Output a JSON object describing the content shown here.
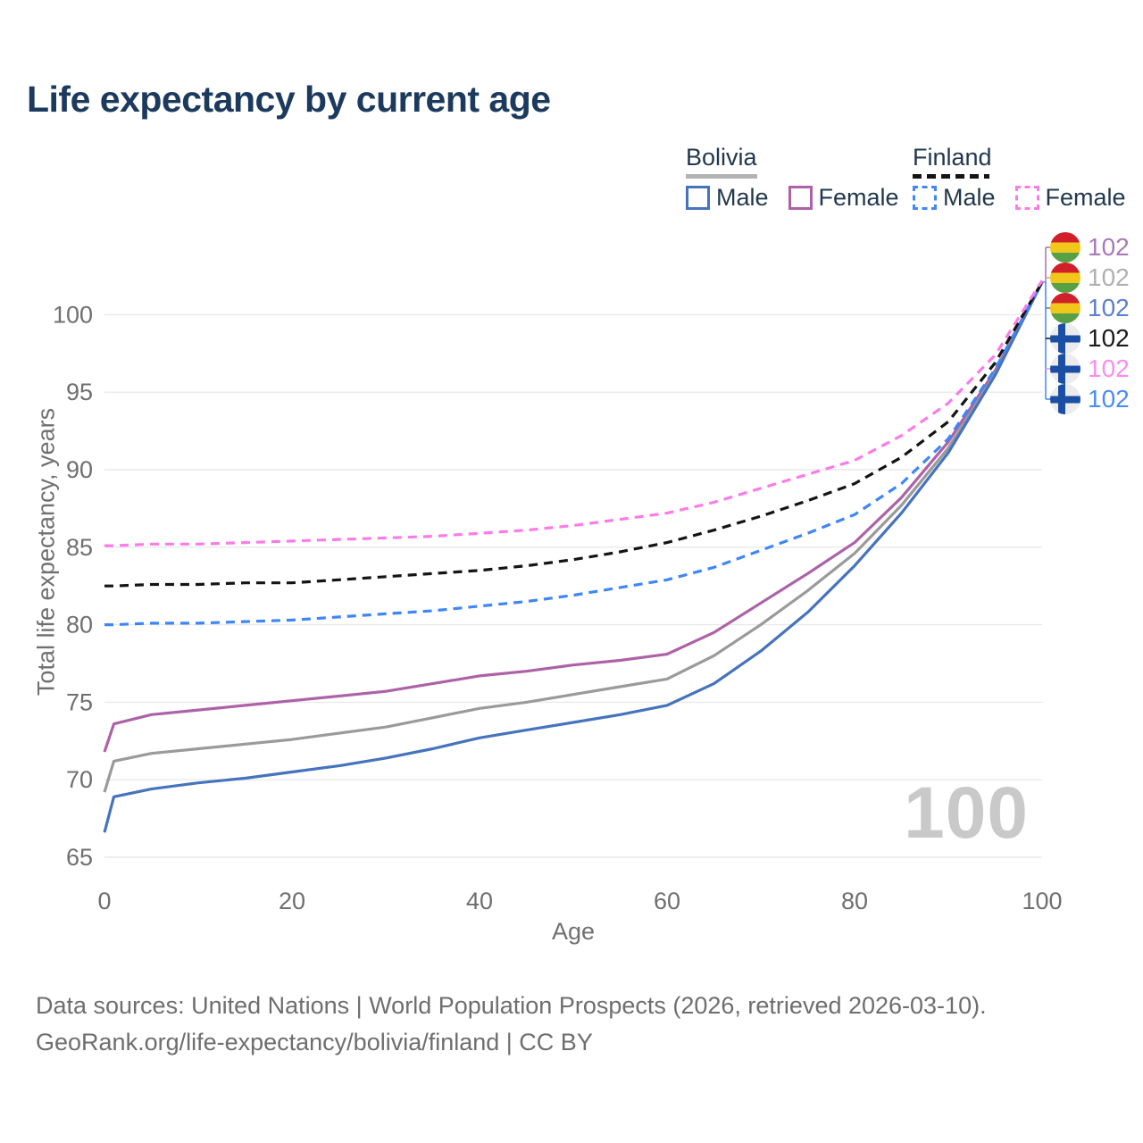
{
  "title": "Life expectancy by current age",
  "legend": {
    "groups": [
      {
        "name": "Bolivia",
        "line_style": "solid",
        "underline_color": "#b3b3b3",
        "items": [
          {
            "label": "Male",
            "color": "#4673bd"
          },
          {
            "label": "Female",
            "color": "#ad62a7"
          }
        ]
      },
      {
        "name": "Finland",
        "line_style": "dashed",
        "underline_color": "#141414",
        "items": [
          {
            "label": "Male",
            "color": "#3f86f7"
          },
          {
            "label": "Female",
            "color": "#fb7ce8"
          }
        ]
      }
    ]
  },
  "watermark": {
    "text": "100"
  },
  "endpoint_labels": [
    {
      "flag": "bolivia",
      "value": "102",
      "color": "#a97ab5"
    },
    {
      "flag": "bolivia",
      "value": "102",
      "color": "#b0b0b0"
    },
    {
      "flag": "bolivia",
      "value": "102",
      "color": "#5d7fce"
    },
    {
      "flag": "finland",
      "value": "102",
      "color": "#1a1a1a"
    },
    {
      "flag": "finland",
      "value": "102",
      "color": "#fb8cf0"
    },
    {
      "flag": "finland",
      "value": "102",
      "color": "#4a8cf7"
    }
  ],
  "footer": {
    "line1": "Data sources: United Nations | World Population Prospects (2026, retrieved 2026-03-10).",
    "line2": "GeoRank.org/life-expectancy/bolivia/finland | CC BY"
  },
  "colors": {
    "grid": "#e9e9e9",
    "tick_text": "#6f6f6f",
    "title_text": "#1c3a5e",
    "watermark": "#c9c9c9",
    "footer_text": "#6e6e6e"
  },
  "chart_data": {
    "type": "line",
    "title": "Life expectancy by current age",
    "xlabel": "Age",
    "ylabel": "Total life expectancy, years",
    "xlim": [
      0,
      100
    ],
    "ylim": [
      65,
      103
    ],
    "xticks": [
      0,
      20,
      40,
      60,
      80,
      100
    ],
    "yticks": [
      65,
      70,
      75,
      80,
      85,
      90,
      95,
      100
    ],
    "grid": "horizontal",
    "legend_position": "top-right",
    "x": [
      0,
      1,
      5,
      10,
      15,
      20,
      25,
      30,
      35,
      40,
      45,
      50,
      55,
      60,
      65,
      70,
      75,
      80,
      85,
      90,
      95,
      100
    ],
    "series": [
      {
        "name": "Bolivia - Female",
        "country": "Bolivia",
        "sex": "female",
        "color": "#ad62a7",
        "dashed": false,
        "end_value": 102,
        "values": [
          71.8,
          73.6,
          74.2,
          74.5,
          74.8,
          75.1,
          75.4,
          75.7,
          76.2,
          76.7,
          77.0,
          77.4,
          77.7,
          78.1,
          79.5,
          81.4,
          83.3,
          85.3,
          88.2,
          91.8,
          96.4,
          102.1
        ]
      },
      {
        "name": "Bolivia - Total",
        "country": "Bolivia",
        "sex": "both",
        "color": "#9a9a9a",
        "dashed": false,
        "end_value": 102,
        "values": [
          69.2,
          71.2,
          71.7,
          72.0,
          72.3,
          72.6,
          73.0,
          73.4,
          74.0,
          74.6,
          75.0,
          75.5,
          76.0,
          76.5,
          78.0,
          80.0,
          82.2,
          84.6,
          87.7,
          91.4,
          96.2,
          102.1
        ]
      },
      {
        "name": "Bolivia - Male",
        "country": "Bolivia",
        "sex": "male",
        "color": "#4673bd",
        "dashed": false,
        "end_value": 102,
        "values": [
          66.6,
          68.9,
          69.4,
          69.8,
          70.1,
          70.5,
          70.9,
          71.4,
          72.0,
          72.7,
          73.2,
          73.7,
          74.2,
          74.8,
          76.2,
          78.3,
          80.8,
          83.8,
          87.2,
          91.1,
          96.1,
          102.1
        ]
      },
      {
        "name": "Finland - Male",
        "country": "Finland",
        "sex": "male",
        "color": "#3f86f7",
        "dashed": true,
        "end_value": 102,
        "values": [
          80.0,
          80.0,
          80.1,
          80.1,
          80.2,
          80.3,
          80.5,
          80.7,
          80.9,
          81.2,
          81.5,
          81.9,
          82.4,
          82.9,
          83.7,
          84.8,
          85.9,
          87.1,
          89.1,
          92.0,
          96.5,
          102.1
        ]
      },
      {
        "name": "Finland - Total",
        "country": "Finland",
        "sex": "both",
        "color": "#141414",
        "dashed": true,
        "end_value": 102,
        "values": [
          82.5,
          82.5,
          82.6,
          82.6,
          82.7,
          82.7,
          82.9,
          83.1,
          83.3,
          83.5,
          83.8,
          84.2,
          84.7,
          85.3,
          86.1,
          87.0,
          88.0,
          89.1,
          90.8,
          93.1,
          96.9,
          102.1
        ]
      },
      {
        "name": "Finland - Female",
        "country": "Finland",
        "sex": "female",
        "color": "#fb7ce8",
        "dashed": true,
        "end_value": 102,
        "values": [
          85.1,
          85.1,
          85.2,
          85.2,
          85.3,
          85.4,
          85.5,
          85.6,
          85.7,
          85.9,
          86.1,
          86.4,
          86.8,
          87.2,
          87.9,
          88.8,
          89.7,
          90.6,
          92.2,
          94.3,
          97.4,
          102.2
        ]
      }
    ]
  }
}
